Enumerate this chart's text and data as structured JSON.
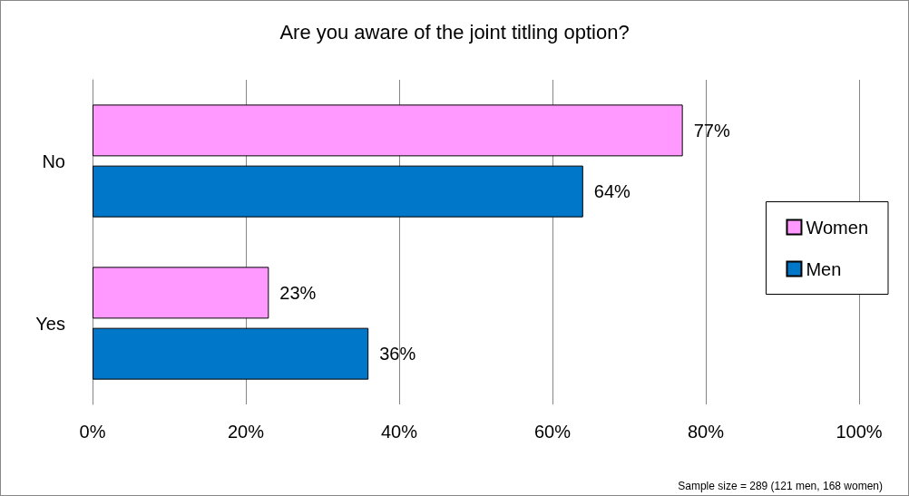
{
  "chart_data": {
    "type": "bar",
    "orientation": "horizontal",
    "title": "Are you aware of the joint titling option?",
    "categories": [
      "No",
      "Yes"
    ],
    "series": [
      {
        "name": "Women",
        "color": "#ff99ff",
        "values": [
          77,
          23
        ],
        "value_labels": [
          "77%",
          "23%"
        ]
      },
      {
        "name": "Men",
        "color": "#0077c8",
        "values": [
          64,
          36
        ],
        "value_labels": [
          "64%",
          "36%"
        ]
      }
    ],
    "xlim": [
      0,
      100
    ],
    "xticks": [
      {
        "value": 0,
        "label": "0%"
      },
      {
        "value": 20,
        "label": "20%"
      },
      {
        "value": 40,
        "label": "40%"
      },
      {
        "value": 60,
        "label": "60%"
      },
      {
        "value": 80,
        "label": "80%"
      },
      {
        "value": 100,
        "label": "100%"
      }
    ],
    "grid": "x",
    "legend": "right",
    "annotations": [
      "Sample size = 289 (121 men, 168 women)"
    ]
  }
}
